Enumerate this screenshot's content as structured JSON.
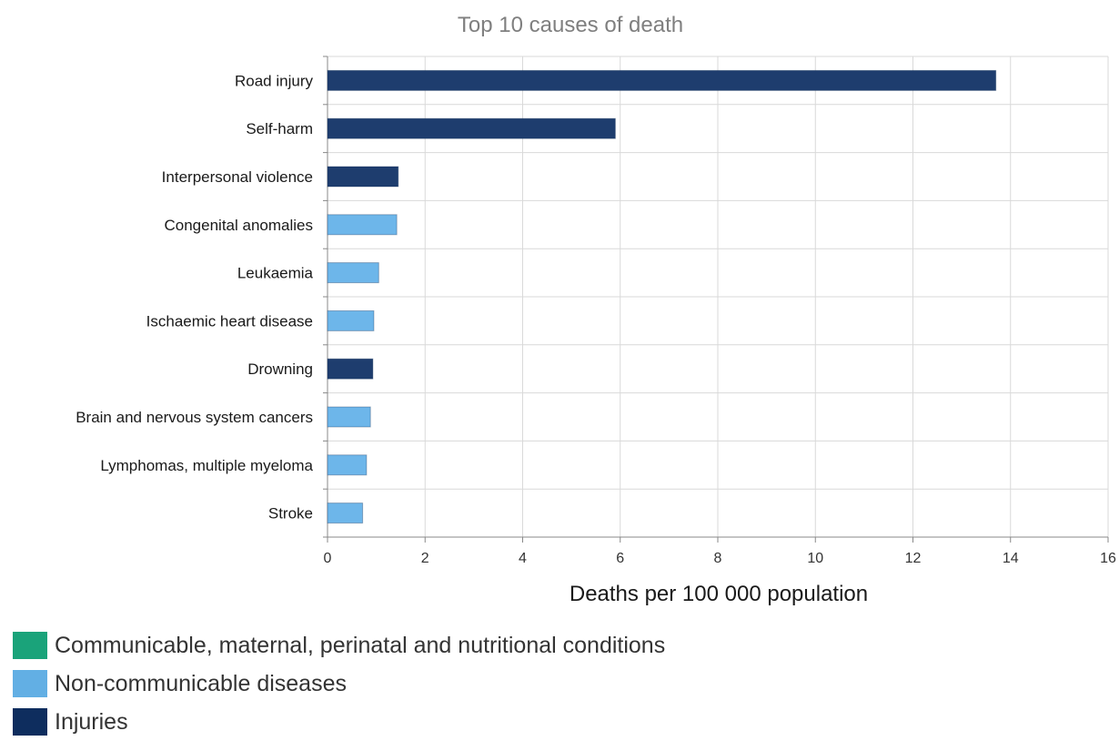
{
  "chart_data": {
    "type": "bar",
    "orientation": "horizontal",
    "title": "Top 10 causes of death",
    "xlabel": "Deaths per 100 000 population",
    "ylabel": "",
    "xlim": [
      0,
      16
    ],
    "xticks": [
      0,
      2,
      4,
      6,
      8,
      10,
      12,
      14,
      16
    ],
    "grid": true,
    "legend_position": "bottom-left",
    "categories": [
      "Road injury",
      "Self-harm",
      "Interpersonal violence",
      "Congenital anomalies",
      "Leukaemia",
      "Ischaemic heart disease",
      "Drowning",
      "Brain and nervous system cancers",
      "Lymphomas, multiple myeloma",
      "Stroke"
    ],
    "values": [
      13.7,
      5.9,
      1.45,
      1.42,
      1.05,
      0.95,
      0.93,
      0.88,
      0.8,
      0.72
    ],
    "groups": [
      "Injuries",
      "Injuries",
      "Injuries",
      "Non-communicable diseases",
      "Non-communicable diseases",
      "Non-communicable diseases",
      "Injuries",
      "Non-communicable diseases",
      "Non-communicable diseases",
      "Non-communicable diseases"
    ]
  },
  "legend": [
    {
      "label": "Communicable, maternal, perinatal and nutritional conditions",
      "color": "#1aa37a"
    },
    {
      "label": "Non-communicable diseases",
      "color": "#62afe4"
    },
    {
      "label": "Injuries",
      "color": "#0e2d5e"
    }
  ],
  "colors": {
    "Injuries": "#1e3d6e",
    "Non-communicable diseases": "#6db6ea",
    "title_text": "#7f7f7f",
    "grid": "#d9d9d9"
  }
}
